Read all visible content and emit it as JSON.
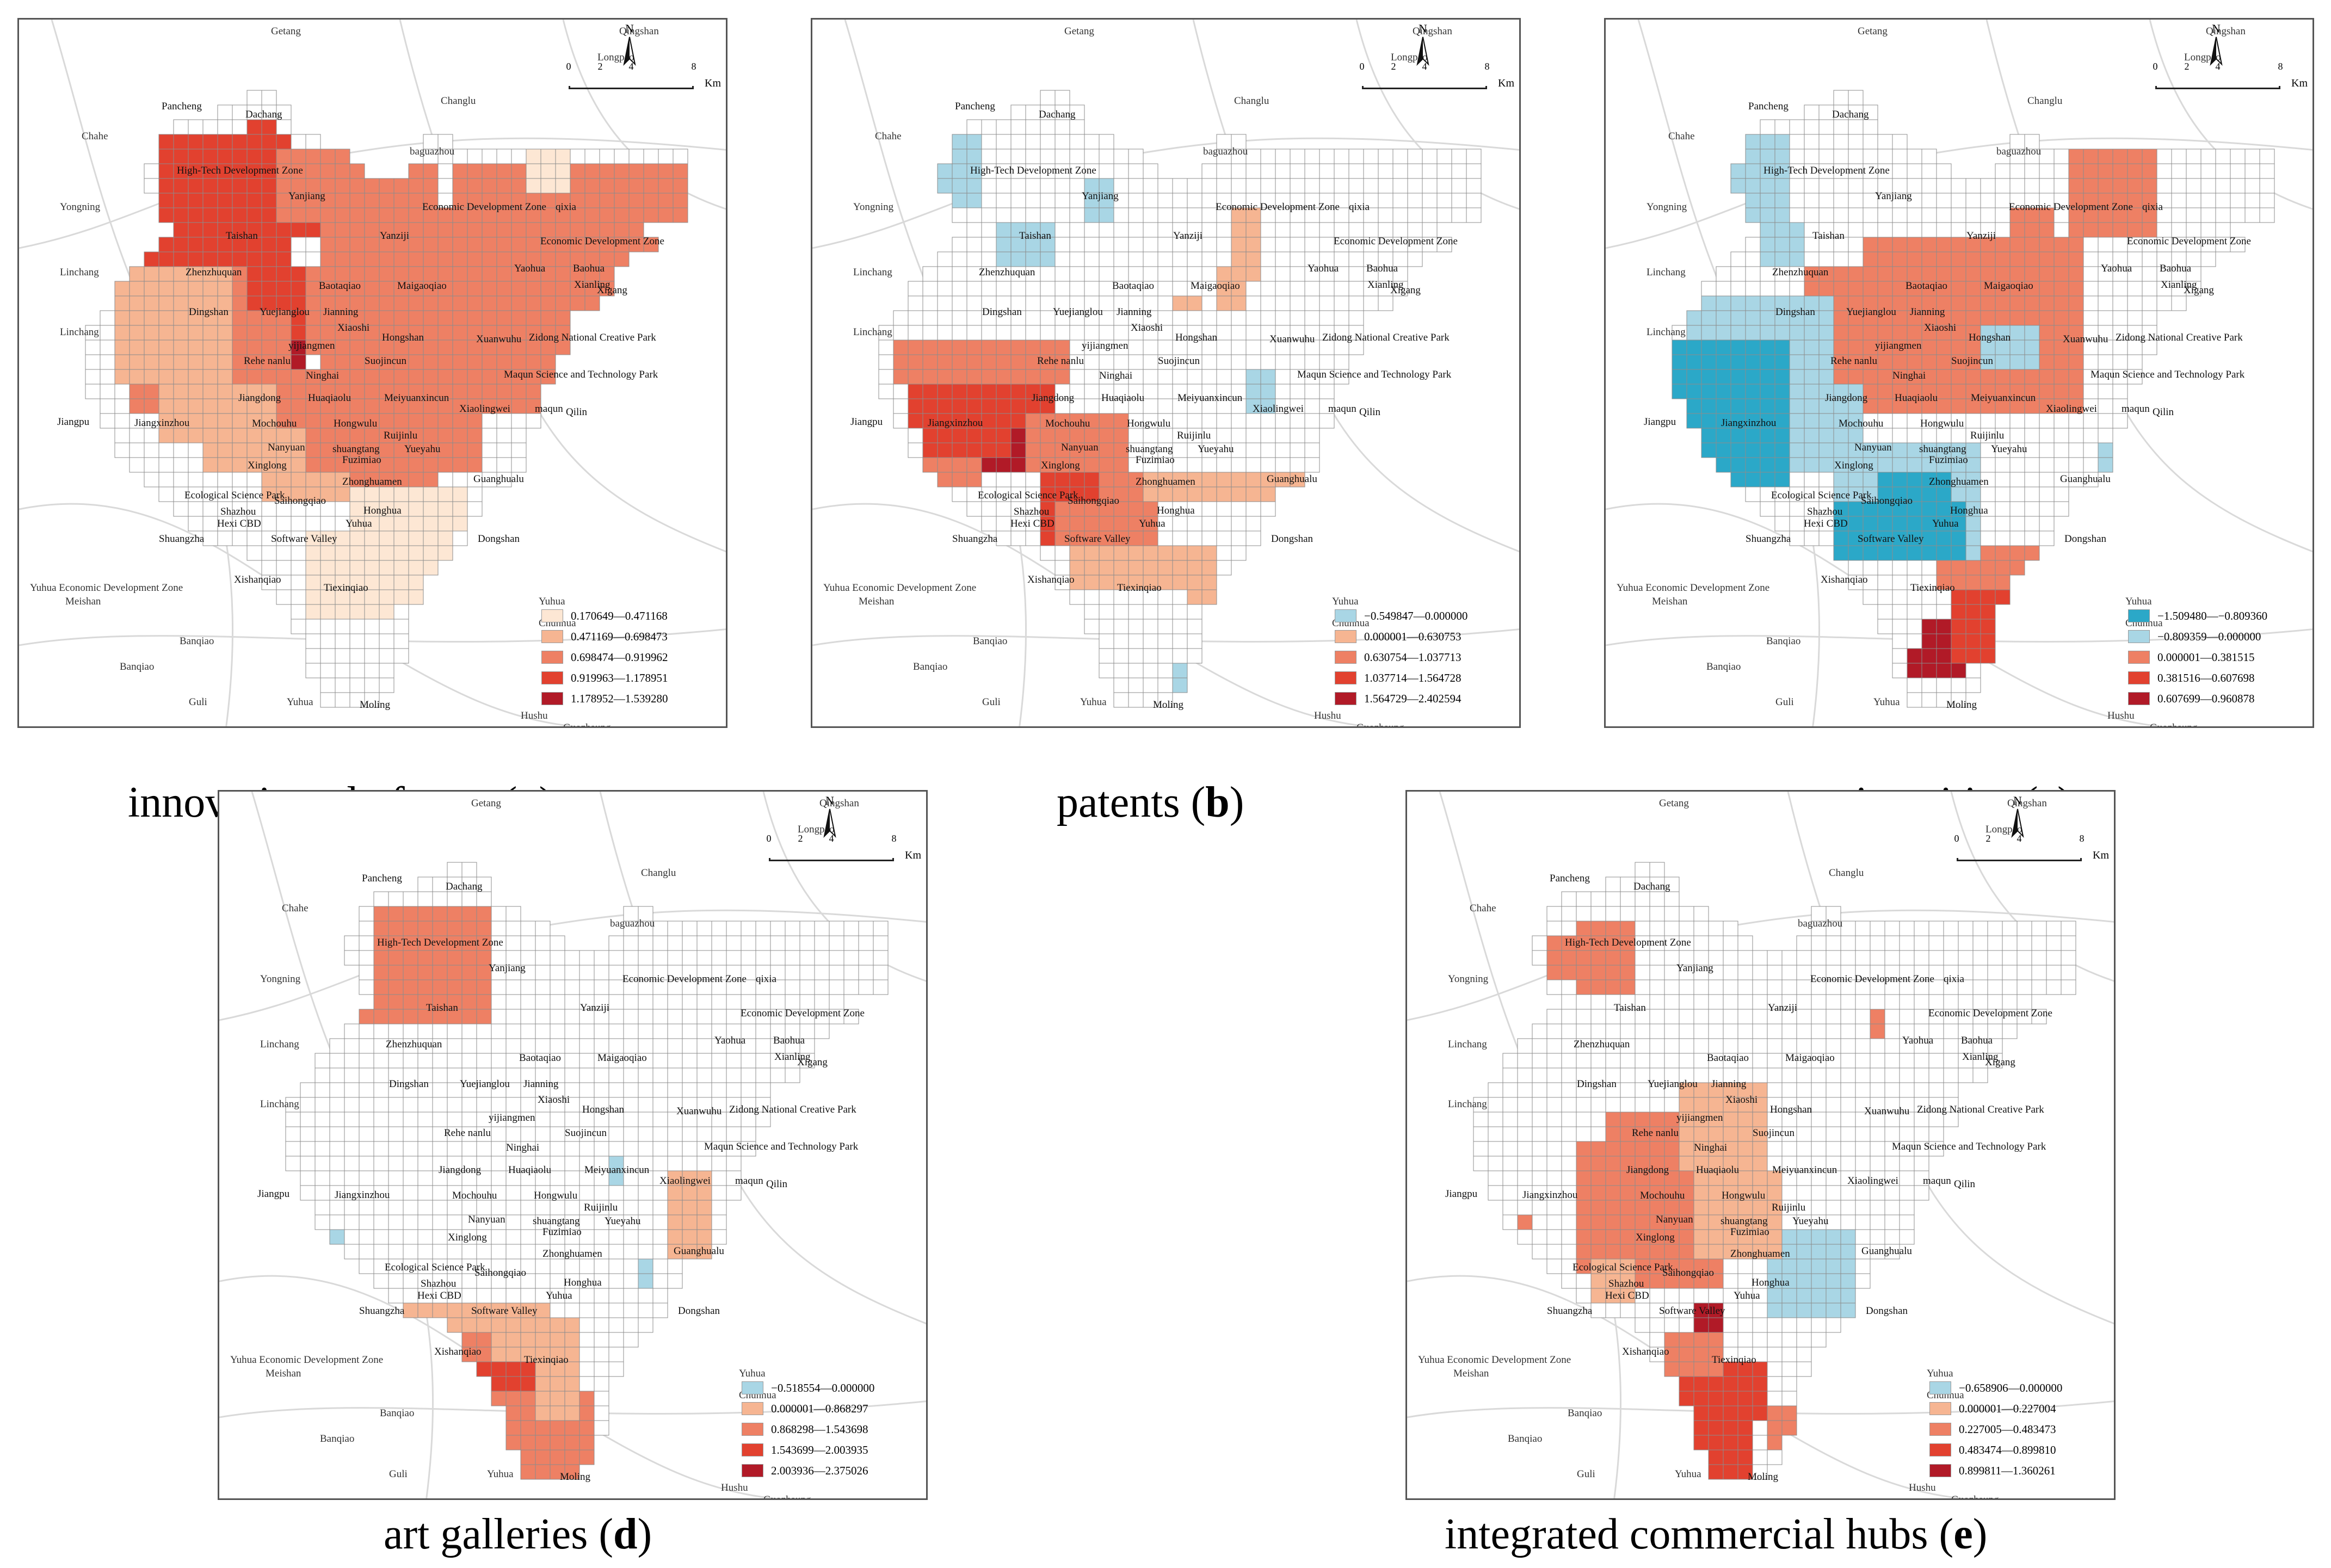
{
  "panels": [
    {
      "id": "a",
      "caption": {
        "pre": "innovation platforms (",
        "letter": "a",
        "post": ")"
      },
      "legend": [
        {
          "label": "0.170649—0.471168",
          "color": "#fde7d4"
        },
        {
          "label": "0.471169—0.698473",
          "color": "#f6b592"
        },
        {
          "label": "0.698474—0.919962",
          "color": "#ee8064"
        },
        {
          "label": "0.919963—1.178951",
          "color": "#e2412f"
        },
        {
          "label": "1.178952—1.539280",
          "color": "#b11a27"
        }
      ]
    },
    {
      "id": "b",
      "caption": {
        "pre": "patents (",
        "letter": "b",
        "post": ")"
      },
      "legend": [
        {
          "label": "−0.549847—0.000000",
          "color": "#a9d6e5"
        },
        {
          "label": "0.000001—0.630753",
          "color": "#f6b592"
        },
        {
          "label": "0.630754—1.037713",
          "color": "#ee8064"
        },
        {
          "label": "1.037714—1.564728",
          "color": "#e2412f"
        },
        {
          "label": "1.564729—2.402594",
          "color": "#b11a27"
        }
      ]
    },
    {
      "id": "c",
      "caption": {
        "pre": "universities (",
        "letter": "c",
        "post": ")"
      },
      "legend": [
        {
          "label": "−1.509480—−0.809360",
          "color": "#2ba8c8"
        },
        {
          "label": "−0.809359—0.000000",
          "color": "#a9d6e5"
        },
        {
          "label": "0.000001—0.381515",
          "color": "#ee8064"
        },
        {
          "label": "0.381516—0.607698",
          "color": "#e2412f"
        },
        {
          "label": "0.607699—0.960878",
          "color": "#b11a27"
        }
      ]
    },
    {
      "id": "d",
      "caption": {
        "pre": "art galleries (",
        "letter": "d",
        "post": ")"
      },
      "legend": [
        {
          "label": "−0.518554—0.000000",
          "color": "#a9d6e5"
        },
        {
          "label": "0.000001—0.868297",
          "color": "#f6b592"
        },
        {
          "label": "0.868298—1.543698",
          "color": "#ee8064"
        },
        {
          "label": "1.543699—2.003935",
          "color": "#e2412f"
        },
        {
          "label": "2.003936—2.375026",
          "color": "#b11a27"
        }
      ]
    },
    {
      "id": "e",
      "caption": {
        "pre": "integrated commercial hubs (",
        "letter": "e",
        "post": ")"
      },
      "legend": [
        {
          "label": "−0.658906—0.000000",
          "color": "#a9d6e5"
        },
        {
          "label": "0.000001—0.227004",
          "color": "#f6b592"
        },
        {
          "label": "0.227005—0.483473",
          "color": "#ee8064"
        },
        {
          "label": "0.483474—0.899810",
          "color": "#e2412f"
        },
        {
          "label": "0.899811—1.360261",
          "color": "#b11a27"
        }
      ]
    }
  ],
  "map_common": {
    "north_label": "N",
    "scale_ticks": [
      "0",
      "2",
      "4",
      "8"
    ],
    "scale_unit": "Km",
    "places": [
      "Getang",
      "Qingshan",
      "Longpao",
      "Changlu",
      "Pancheng",
      "Dachang",
      "Chahe",
      "baguazhou",
      "High-Tech Development Zone",
      "Yongning",
      "Yanjiang",
      "Economic Development Zone",
      "qixia",
      "Taishan",
      "Yanziji",
      "Economic Development Zone",
      "Linchang",
      "Zhenzhuquan",
      "Yaohua",
      "Baohua",
      "Baotaqiao",
      "Maigaoqiao",
      "Xianling",
      "Xigang",
      "Dingshan",
      "Yuejianglou",
      "Jianning",
      "Xiaoshi",
      "Hongshan",
      "Linchang",
      "yijiangmen",
      "Xuanwuhu",
      "Zidong National Creative Park",
      "Rehe nanlu",
      "Suojincun",
      "Ninghai",
      "Maqun Science and Technology Park",
      "Jiangdong",
      "Huaqiaolu",
      "Meiyuanxincun",
      "Xiaolingwei",
      "maqun",
      "Qilin",
      "Jiangpu",
      "Jiangxinzhou",
      "Mochouhu",
      "Hongwulu",
      "Ruijinlu",
      "Nanyuan",
      "shuangtang",
      "Yueyahu",
      "Xinglong",
      "Fuzimiao",
      "Guanghualu",
      "Zhonghuamen",
      "Ecological Science Park",
      "Saihongqiao",
      "Shazhou",
      "Honghua",
      "Hexi CBD",
      "Yuhua",
      "Shuangzha",
      "Software Valley",
      "Dongshan",
      "Yuhua Economic Development Zone",
      "Xishanqiao",
      "Tiexinqiao",
      "Meishan",
      "Yuhua",
      "Chunhua",
      "Banqiao",
      "Banqiao",
      "Guli",
      "Yuhua",
      "Moling",
      "Hushu",
      "Guozhaung"
    ]
  },
  "fills": {
    "a": [
      {
        "cells": [
          [
            9,
            3,
            4,
            3
          ],
          [
            8,
            6,
            5,
            3
          ],
          [
            10,
            9,
            2,
            2
          ],
          [
            15,
            16,
            4,
            2
          ],
          [
            15,
            18,
            1,
            4
          ],
          [
            13,
            14,
            3,
            2
          ],
          [
            16,
            13,
            2,
            2
          ],
          [
            19,
            17,
            2,
            3
          ],
          [
            29,
            15,
            2,
            2
          ]
        ],
        "level": 4
      },
      {
        "cells": [
          [
            6,
            3,
            9,
            9
          ],
          [
            12,
            2,
            2,
            4
          ],
          [
            13,
            8,
            4,
            2
          ],
          [
            5,
            11,
            9,
            6
          ],
          [
            10,
            6,
            4,
            4
          ],
          [
            12,
            12,
            8,
            5
          ],
          [
            18,
            5,
            6,
            2
          ],
          [
            13,
            13,
            4,
            4
          ]
        ],
        "level": 3
      },
      {
        "cells": [
          [
            14,
            4,
            9,
            5
          ],
          [
            17,
            8,
            34,
            14
          ],
          [
            21,
            5,
            4,
            3
          ],
          [
            26,
            5,
            24,
            3
          ],
          [
            8,
            12,
            4,
            5
          ],
          [
            16,
            12,
            6,
            6
          ],
          [
            4,
            15,
            11,
            7
          ],
          [
            10,
            19,
            10,
            5
          ],
          [
            14,
            22,
            14,
            4
          ],
          [
            18,
            25,
            7,
            2
          ]
        ],
        "level": 2
      },
      {
        "cells": [
          [
            3,
            12,
            8,
            8
          ],
          [
            6,
            20,
            8,
            4
          ],
          [
            9,
            23,
            7,
            3
          ],
          [
            13,
            26,
            6,
            2
          ]
        ],
        "level": 1
      },
      {
        "cells": [
          [
            19,
            27,
            7,
            6
          ],
          [
            16,
            30,
            6,
            6
          ],
          [
            23,
            27,
            4,
            3
          ],
          [
            20,
            33,
            8,
            2
          ],
          [
            31,
            4,
            3,
            3
          ]
        ],
        "level": 0
      }
    ],
    "b": [
      {
        "cells": [
          [
            5,
            20,
            7,
            3
          ],
          [
            6,
            23,
            5,
            3
          ]
        ],
        "level": 4
      },
      {
        "cells": [
          [
            3,
            18,
            10,
            5
          ],
          [
            4,
            23,
            6,
            2
          ],
          [
            10,
            20,
            3,
            1
          ],
          [
            12,
            24,
            4,
            5
          ],
          [
            12,
            29,
            6,
            2
          ]
        ],
        "level": 3
      },
      {
        "cells": [
          [
            2,
            17,
            12,
            3
          ],
          [
            4,
            25,
            4,
            2
          ],
          [
            11,
            22,
            7,
            4
          ],
          [
            13,
            28,
            7,
            3
          ],
          [
            16,
            26,
            3,
            2
          ]
        ],
        "level": 2
      },
      {
        "cells": [
          [
            25,
            8,
            2,
            5
          ],
          [
            24,
            12,
            2,
            3
          ],
          [
            19,
            26,
            12,
            2
          ],
          [
            14,
            31,
            10,
            3
          ],
          [
            22,
            33,
            4,
            2
          ],
          [
            21,
            14,
            2,
            1
          ]
        ],
        "level": 1
      },
      {
        "cells": [
          [
            5,
            3,
            3,
            5
          ],
          [
            9,
            9,
            4,
            3
          ],
          [
            15,
            6,
            2,
            3
          ],
          [
            21,
            39,
            3,
            5
          ],
          [
            26,
            19,
            2,
            3
          ],
          [
            3,
            4,
            2,
            2
          ]
        ],
        "level": 0
      }
    ],
    "c": [
      {
        "cells": [
          [
            18,
            36,
            6,
            3
          ],
          [
            17,
            38,
            4,
            2
          ]
        ],
        "level": 4
      },
      {
        "cells": [
          [
            15,
            11,
            14,
            5
          ],
          [
            17,
            16,
            10,
            4
          ],
          [
            13,
            14,
            4,
            3
          ],
          [
            20,
            34,
            7,
            5
          ],
          [
            24,
            37,
            2,
            2
          ]
        ],
        "level": 3
      },
      {
        "cells": [
          [
            14,
            10,
            15,
            12
          ],
          [
            10,
            12,
            4,
            8
          ],
          [
            28,
            4,
            6,
            6
          ],
          [
            24,
            8,
            3,
            2
          ],
          [
            19,
            12,
            2,
            2
          ],
          [
            24,
            18,
            4,
            3
          ],
          [
            19,
            31,
            7,
            3
          ]
        ],
        "level": 2
      },
      {
        "cells": [
          [
            2,
            14,
            10,
            12
          ],
          [
            10,
            20,
            4,
            6
          ],
          [
            12,
            24,
            10,
            8
          ],
          [
            5,
            3,
            4,
            6
          ],
          [
            7,
            9,
            3,
            3
          ],
          [
            13,
            26,
            6,
            4
          ],
          [
            22,
            16,
            4,
            3
          ],
          [
            30,
            24,
            2,
            3
          ]
        ],
        "level": 1
      },
      {
        "cells": [
          [
            1,
            17,
            8,
            6
          ],
          [
            3,
            23,
            6,
            4
          ],
          [
            12,
            28,
            9,
            4
          ],
          [
            15,
            26,
            5,
            2
          ]
        ],
        "level": 0
      }
    ],
    "d": [
      {
        "cells": [
          [
            12,
            36,
            6,
            8
          ],
          [
            14,
            34,
            3,
            2
          ]
        ],
        "level": 4
      },
      {
        "cells": [
          [
            11,
            34,
            10,
            10
          ],
          [
            16,
            35,
            3,
            5
          ],
          [
            9,
            4,
            3,
            5
          ]
        ],
        "level": 3
      },
      {
        "cells": [
          [
            7,
            3,
            8,
            8
          ],
          [
            10,
            32,
            8,
            2
          ],
          [
            8,
            36,
            14,
            8
          ],
          [
            18,
            38,
            3,
            2
          ],
          [
            6,
            9,
            3,
            2
          ]
        ],
        "level": 2
      },
      {
        "cells": [
          [
            9,
            30,
            10,
            2
          ],
          [
            18,
            34,
            3,
            4
          ],
          [
            15,
            31,
            6,
            3
          ],
          [
            27,
            21,
            3,
            6
          ],
          [
            28,
            23,
            2,
            2
          ]
        ],
        "level": 1
      },
      {
        "cells": [
          [
            23,
            20,
            1,
            2
          ],
          [
            4,
            25,
            1,
            2
          ],
          [
            25,
            27,
            1,
            2
          ]
        ],
        "level": 0
      }
    ],
    "e": [
      {
        "cells": [
          [
            16,
            30,
            2,
            3
          ],
          [
            12,
            37,
            6,
            6
          ],
          [
            14,
            34,
            2,
            3
          ]
        ],
        "level": 4
      },
      {
        "cells": [
          [
            11,
            36,
            9,
            8
          ],
          [
            15,
            32,
            3,
            6
          ],
          [
            17,
            34,
            4,
            4
          ],
          [
            18,
            35,
            2,
            6
          ]
        ],
        "level": 3
      },
      {
        "cells": [
          [
            8,
            4,
            4,
            5
          ],
          [
            6,
            5,
            4,
            3
          ],
          [
            10,
            17,
            8,
            12
          ],
          [
            8,
            19,
            3,
            9
          ],
          [
            11,
            24,
            6,
            4
          ],
          [
            21,
            37,
            2,
            3
          ],
          [
            28,
            10,
            1,
            2
          ],
          [
            14,
            32,
            4,
            3
          ],
          [
            4,
            24,
            1,
            1
          ]
        ],
        "level": 2
      },
      {
        "cells": [
          [
            15,
            15,
            6,
            6
          ],
          [
            9,
            27,
            3,
            3
          ],
          [
            16,
            21,
            6,
            6
          ]
        ],
        "level": 1
      },
      {
        "cells": [
          [
            22,
            25,
            5,
            3
          ],
          [
            21,
            27,
            6,
            4
          ],
          [
            23,
            26,
            4,
            5
          ]
        ],
        "level": 0
      }
    ]
  }
}
